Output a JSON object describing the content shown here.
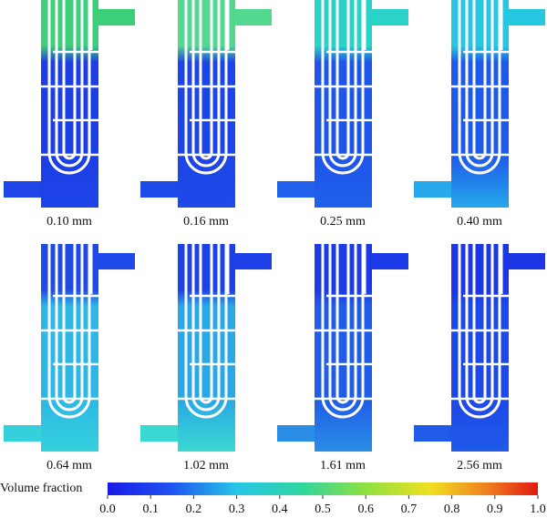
{
  "panels": [
    {
      "label": "0.10 mm"
    },
    {
      "label": "0.16 mm"
    },
    {
      "label": "0.25 mm"
    },
    {
      "label": "0.40 mm"
    },
    {
      "label": "0.64 mm"
    },
    {
      "label": "1.02 mm"
    },
    {
      "label": "1.61 mm"
    },
    {
      "label": "2.56 mm"
    }
  ],
  "colorbar": {
    "title": "Volume fraction",
    "lim": [
      0,
      1
    ],
    "ticks": [
      {
        "value": 0,
        "label": "0.0"
      },
      {
        "value": 0.1,
        "label": "0.1"
      },
      {
        "value": 0.2,
        "label": "0.2"
      },
      {
        "value": 0.3,
        "label": "0.3"
      },
      {
        "value": 0.4,
        "label": "0.4"
      },
      {
        "value": 0.5,
        "label": "0.5"
      },
      {
        "value": 0.6,
        "label": "0.6"
      },
      {
        "value": 0.7,
        "label": "0.7"
      },
      {
        "value": 0.8,
        "label": "0.8"
      },
      {
        "value": 0.9,
        "label": "0.9"
      },
      {
        "value": 1,
        "label": "1.0"
      }
    ]
  }
}
